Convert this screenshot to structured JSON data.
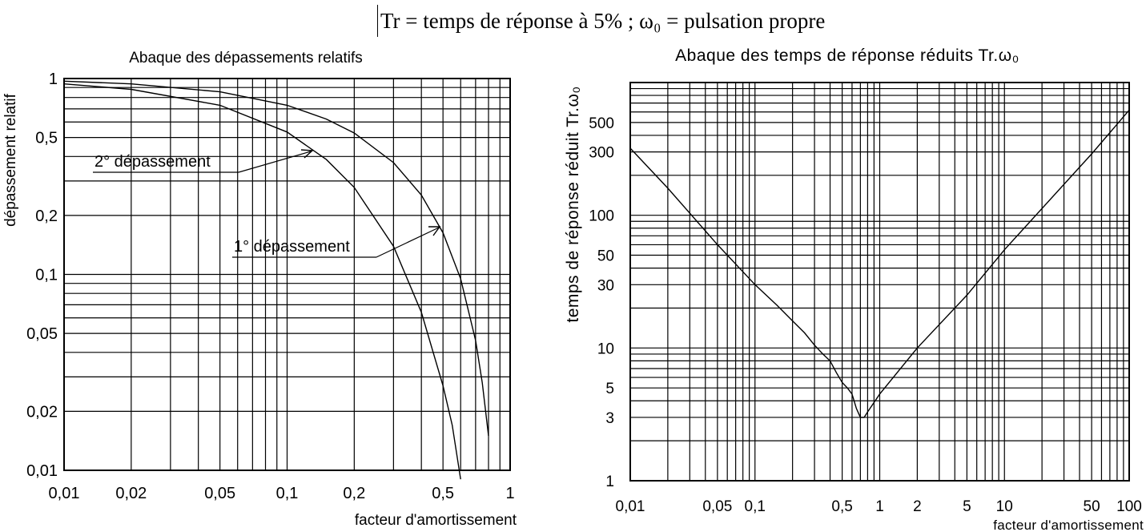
{
  "header": {
    "text": "Tr = temps de réponse à 5%  ;  ω₀ = pulsation propre"
  },
  "chart_data": [
    {
      "type": "line",
      "title": "Abaque des dépassements relatifs",
      "xlabel": "facteur d'amortissement",
      "ylabel": "dépassement relatif",
      "xscale": "log",
      "yscale": "log",
      "xlim": [
        0.01,
        1
      ],
      "ylim": [
        0.01,
        1
      ],
      "grid": true,
      "x_ticks": [
        {
          "value": 0.01,
          "label": "0,01"
        },
        {
          "value": 0.02,
          "label": "0,02"
        },
        {
          "value": 0.05,
          "label": "0,05"
        },
        {
          "value": 0.1,
          "label": "0,1"
        },
        {
          "value": 0.2,
          "label": "0,2"
        },
        {
          "value": 0.5,
          "label": "0,5"
        },
        {
          "value": 1,
          "label": "1"
        }
      ],
      "y_ticks": [
        {
          "value": 0.01,
          "label": "0,01"
        },
        {
          "value": 0.02,
          "label": "0,02"
        },
        {
          "value": 0.05,
          "label": "0,05"
        },
        {
          "value": 0.1,
          "label": "0,1"
        },
        {
          "value": 0.2,
          "label": "0,2"
        },
        {
          "value": 0.5,
          "label": "0,5"
        },
        {
          "value": 1,
          "label": "1"
        }
      ],
      "series": [
        {
          "name": "1° dépassement",
          "x": [
            0.01,
            0.02,
            0.05,
            0.1,
            0.15,
            0.2,
            0.3,
            0.4,
            0.5,
            0.6,
            0.7,
            0.75,
            0.8
          ],
          "y": [
            0.969,
            0.939,
            0.855,
            0.73,
            0.621,
            0.527,
            0.372,
            0.254,
            0.163,
            0.095,
            0.046,
            0.028,
            0.015
          ]
        },
        {
          "name": "2° dépassement",
          "x": [
            0.01,
            0.02,
            0.05,
            0.1,
            0.15,
            0.2,
            0.3,
            0.4,
            0.5,
            0.55,
            0.6
          ],
          "y": [
            0.939,
            0.881,
            0.73,
            0.533,
            0.386,
            0.278,
            0.139,
            0.064,
            0.027,
            0.017,
            0.009
          ]
        }
      ]
    },
    {
      "type": "line",
      "title": "Abaque des temps de réponse réduits Tr.ω₀",
      "xlabel": "facteur d'amortissement",
      "ylabel": "temps de réponse réduit Tr.ω₀",
      "xscale": "log",
      "yscale": "log",
      "xlim": [
        0.01,
        100
      ],
      "ylim": [
        1,
        1000
      ],
      "grid": true,
      "x_ticks": [
        {
          "value": 0.01,
          "label": "0,01"
        },
        {
          "value": 0.05,
          "label": "0,05"
        },
        {
          "value": 0.1,
          "label": "0,1"
        },
        {
          "value": 0.5,
          "label": "0,5"
        },
        {
          "value": 1,
          "label": "1"
        },
        {
          "value": 2,
          "label": "2"
        },
        {
          "value": 5,
          "label": "5"
        },
        {
          "value": 10,
          "label": "10"
        },
        {
          "value": 50,
          "label": "50"
        },
        {
          "value": 100,
          "label": "100"
        }
      ],
      "y_ticks": [
        {
          "value": 1,
          "label": "1"
        },
        {
          "value": 3,
          "label": "3"
        },
        {
          "value": 5,
          "label": "5"
        },
        {
          "value": 10,
          "label": "10"
        },
        {
          "value": 30,
          "label": "30"
        },
        {
          "value": 50,
          "label": "50"
        },
        {
          "value": 100,
          "label": "100"
        },
        {
          "value": 300,
          "label": "300"
        },
        {
          "value": 500,
          "label": "500"
        }
      ],
      "series": [
        {
          "x": [
            0.01,
            0.02,
            0.05,
            0.1,
            0.15,
            0.2,
            0.25,
            0.3,
            0.35,
            0.4,
            0.45,
            0.5,
            0.55,
            0.6,
            0.65,
            0.7,
            0.75,
            0.8,
            1,
            2,
            5,
            10,
            50,
            100
          ],
          "y": [
            320,
            160,
            60,
            30,
            21,
            16,
            13,
            10.5,
            9,
            8,
            6.5,
            5.5,
            5,
            4.5,
            3.5,
            3,
            3,
            3.3,
            4.5,
            10,
            25,
            55,
            290,
            620
          ]
        }
      ]
    }
  ]
}
